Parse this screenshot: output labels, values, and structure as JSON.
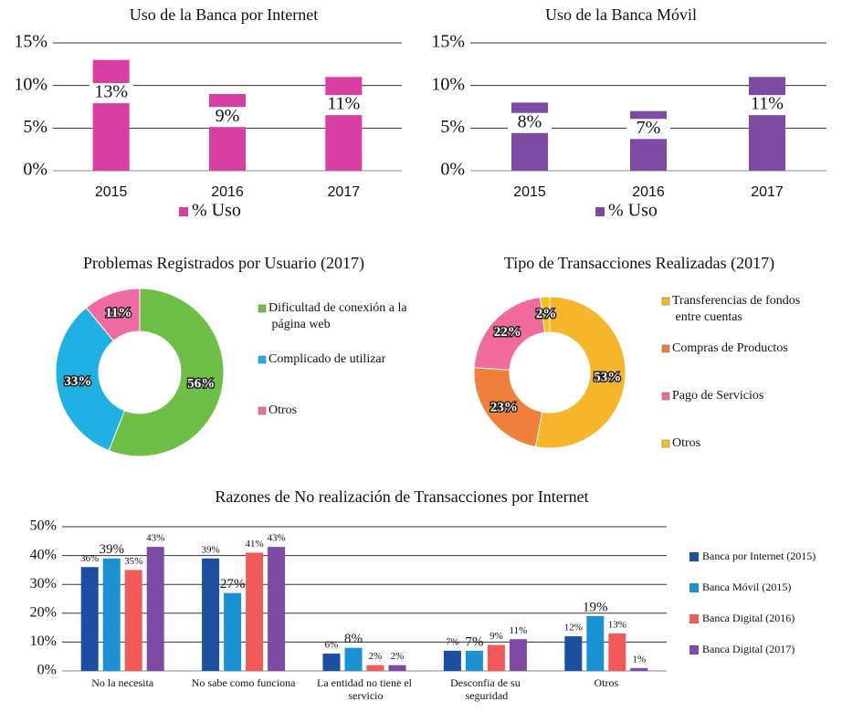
{
  "chart_data": [
    {
      "type": "bar",
      "title": "Uso de la Banca por Internet",
      "categories": [
        "2015",
        "2016",
        "2017"
      ],
      "series": [
        {
          "name": "% Uso",
          "color": "#d93fa3",
          "values": [
            13,
            9,
            11
          ],
          "value_labels": [
            "13%",
            "9%",
            "11%"
          ]
        }
      ],
      "ylim": [
        0,
        15
      ],
      "yticks": [
        {
          "value": 0,
          "label": "0%"
        },
        {
          "value": 5,
          "label": "5%"
        },
        {
          "value": 10,
          "label": "10%"
        },
        {
          "value": 15,
          "label": "15%"
        }
      ],
      "grid": true,
      "legend": "bottom"
    },
    {
      "type": "bar",
      "title": "Uso de la Banca Móvil",
      "categories": [
        "2015",
        "2016",
        "2017"
      ],
      "series": [
        {
          "name": "% Uso",
          "color": "#7d4ba3",
          "values": [
            8,
            7,
            11
          ],
          "value_labels": [
            "8%",
            "7%",
            "11%"
          ]
        }
      ],
      "ylim": [
        0,
        15
      ],
      "yticks": [
        {
          "value": 0,
          "label": "0%"
        },
        {
          "value": 5,
          "label": "5%"
        },
        {
          "value": 10,
          "label": "10%"
        },
        {
          "value": 15,
          "label": "15%"
        }
      ],
      "grid": true,
      "legend": "bottom"
    },
    {
      "type": "doughnut",
      "title": "Problemas Registrados por Usuario (2017)",
      "categories": [
        "Dificultad de conexión a la página web",
        "Complicado de utilizar",
        "Otros"
      ],
      "values": [
        56,
        33,
        11
      ],
      "value_labels": [
        "56%",
        "33%",
        "11%"
      ],
      "colors": [
        "#6dbf45",
        "#1fb1e3",
        "#f06ba3"
      ],
      "legend": "right"
    },
    {
      "type": "doughnut",
      "title": "Tipo de Transacciones Realizadas (2017)",
      "categories": [
        "Transferencias de fondos entre cuentas",
        "Compras de Productos",
        "Pago de Servicios",
        "Otros"
      ],
      "values": [
        53,
        23,
        22,
        2
      ],
      "value_labels": [
        "53%",
        "23%",
        "22%",
        "2%"
      ],
      "colors": [
        "#f7b52a",
        "#f07f3c",
        "#f06b9c",
        "#f5c21b"
      ],
      "legend": "right"
    },
    {
      "type": "bar",
      "title": "Razones de No realización de Transacciones por Internet",
      "categories": [
        "No la necesita",
        "No sabe como funciona",
        "La entidad no tiene el servicio",
        "Desconfia de su seguridad",
        "Otros"
      ],
      "series": [
        {
          "name": "Banca por Internet (2015)",
          "color": "#1d4fa0",
          "values": [
            36,
            39,
            6,
            7,
            12
          ],
          "value_labels": [
            "36%",
            "39%",
            "6%",
            "7%",
            "12%"
          ]
        },
        {
          "name": "Banca Móvil (2015)",
          "color": "#1a91d3",
          "values": [
            39,
            27,
            8,
            7,
            19
          ],
          "value_labels": [
            "39%",
            "27%",
            "8%",
            "7%",
            "19%"
          ]
        },
        {
          "name": "Banca Digital (2016)",
          "color": "#f25a5a",
          "values": [
            35,
            41,
            2,
            9,
            13
          ],
          "value_labels": [
            "35%",
            "41%",
            "2%",
            "9%",
            "13%"
          ]
        },
        {
          "name": "Banca Digital (2017)",
          "color": "#7d4ba3",
          "values": [
            43,
            43,
            2,
            11,
            1
          ],
          "value_labels": [
            "43%",
            "43%",
            "2%",
            "11%",
            "1%"
          ]
        }
      ],
      "ylim": [
        0,
        50
      ],
      "yticks": [
        {
          "value": 0,
          "label": "0%"
        },
        {
          "value": 10,
          "label": "10%"
        },
        {
          "value": 20,
          "label": "20%"
        },
        {
          "value": 30,
          "label": "30%"
        },
        {
          "value": 40,
          "label": "40%"
        },
        {
          "value": 50,
          "label": "50%"
        }
      ],
      "grid": true,
      "legend": "right"
    }
  ]
}
